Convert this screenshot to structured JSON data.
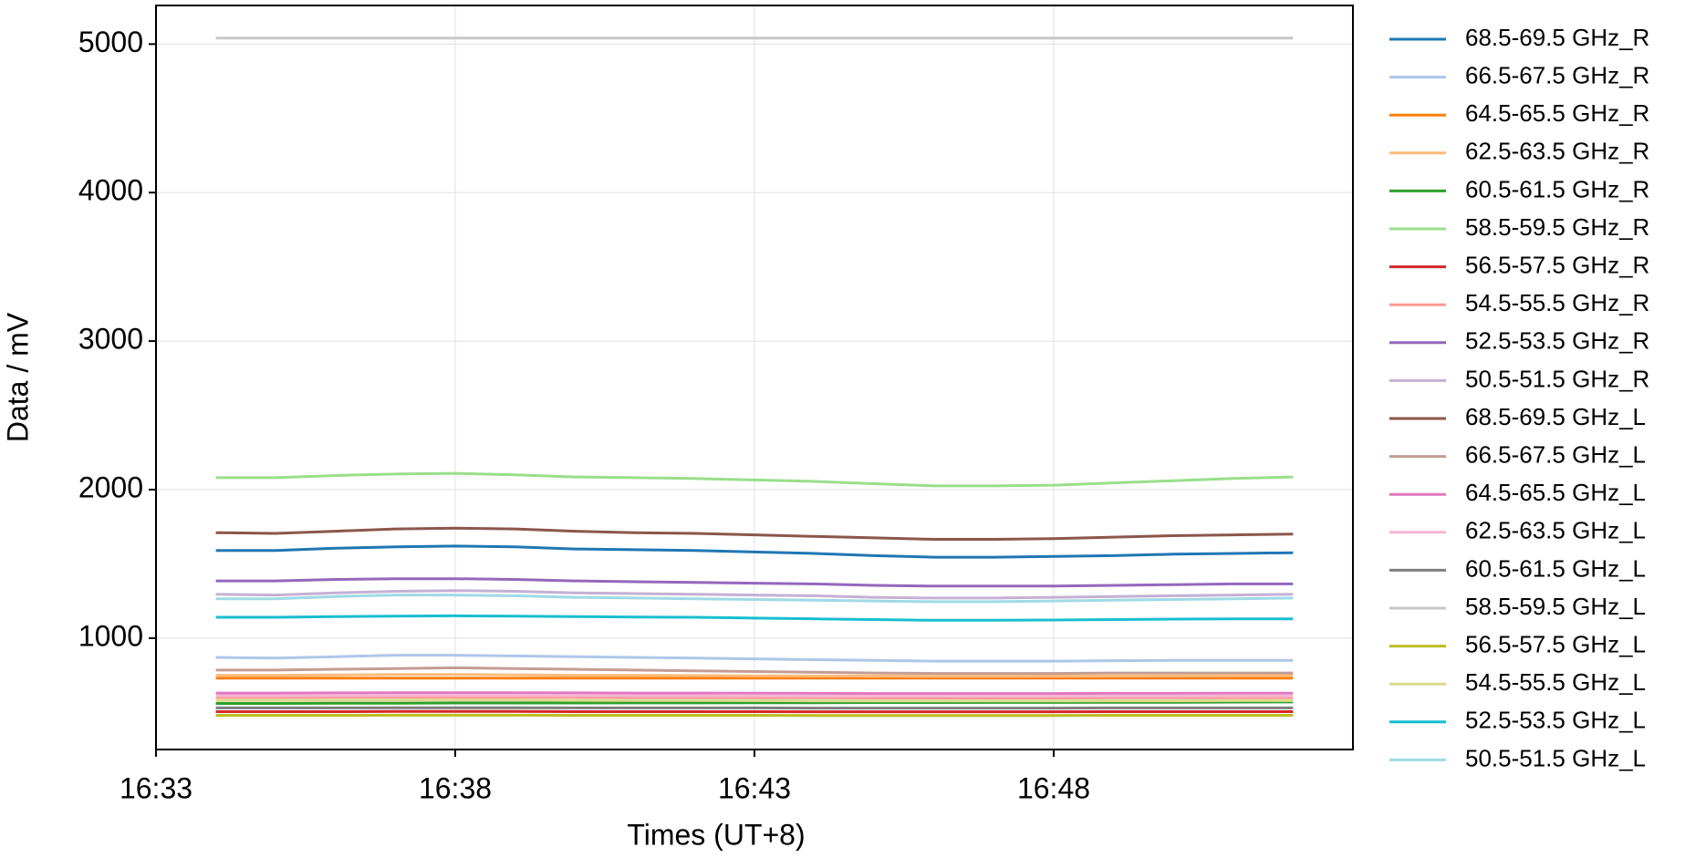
{
  "chart_data": {
    "type": "line",
    "x_label": "Times (UT+8)",
    "y_label": "Data / mV",
    "x": [
      "16:34",
      "16:35",
      "16:36",
      "16:37",
      "16:38",
      "16:39",
      "16:40",
      "16:41",
      "16:42",
      "16:43",
      "16:44",
      "16:45",
      "16:46",
      "16:47",
      "16:48",
      "16:49",
      "16:50",
      "16:51",
      "16:52"
    ],
    "xlim": [
      "16:33",
      "16:53"
    ],
    "xticks": [
      "16:33",
      "16:38",
      "16:43",
      "16:48"
    ],
    "ylim": [
      250,
      5260
    ],
    "yticks": [
      1000,
      2000,
      3000,
      4000,
      5000
    ],
    "grid": true,
    "legend": "outside-right",
    "series": [
      {
        "name": "68.5-69.5 GHz_R",
        "color": "#1f77b4",
        "values": [
          1590,
          1590,
          1605,
          1615,
          1620,
          1615,
          1600,
          1595,
          1590,
          1580,
          1570,
          1555,
          1545,
          1545,
          1550,
          1555,
          1565,
          1570,
          1575
        ]
      },
      {
        "name": "66.5-67.5 GHz_R",
        "color": "#aec7e8",
        "values": [
          870,
          865,
          875,
          885,
          885,
          880,
          875,
          870,
          865,
          860,
          855,
          850,
          845,
          845,
          845,
          848,
          850,
          850,
          850
        ]
      },
      {
        "name": "64.5-65.5 GHz_R",
        "color": "#ff7f0e",
        "values": [
          730,
          730,
          730,
          730,
          730,
          730,
          730,
          730,
          730,
          730,
          730,
          730,
          730,
          730,
          730,
          730,
          730,
          730,
          730
        ]
      },
      {
        "name": "62.5-63.5 GHz_R",
        "color": "#ffbb78",
        "values": [
          750,
          750,
          752,
          755,
          755,
          753,
          750,
          750,
          748,
          746,
          745,
          744,
          743,
          743,
          744,
          745,
          746,
          747,
          748
        ]
      },
      {
        "name": "60.5-61.5 GHz_R",
        "color": "#2ca02c",
        "values": [
          560,
          560,
          561,
          562,
          563,
          563,
          563,
          564,
          564,
          565,
          565,
          566,
          566,
          567,
          567,
          568,
          568,
          569,
          570
        ]
      },
      {
        "name": "58.5-59.5 GHz_R",
        "color": "#98df8a",
        "values": [
          2080,
          2080,
          2095,
          2105,
          2110,
          2100,
          2085,
          2080,
          2075,
          2065,
          2055,
          2040,
          2025,
          2025,
          2030,
          2045,
          2060,
          2075,
          2085
        ]
      },
      {
        "name": "56.5-57.5 GHz_R",
        "color": "#d62728",
        "values": [
          505,
          505,
          505,
          506,
          506,
          506,
          505,
          505,
          505,
          505,
          504,
          504,
          504,
          504,
          504,
          505,
          505,
          505,
          505
        ]
      },
      {
        "name": "54.5-55.5 GHz_R",
        "color": "#ff9896",
        "values": [
          600,
          600,
          601,
          602,
          602,
          602,
          601,
          600,
          600,
          599,
          598,
          597,
          597,
          597,
          597,
          598,
          598,
          599,
          599
        ]
      },
      {
        "name": "52.5-53.5 GHz_R",
        "color": "#9467bd",
        "values": [
          1385,
          1385,
          1395,
          1400,
          1400,
          1395,
          1385,
          1380,
          1375,
          1370,
          1365,
          1355,
          1350,
          1350,
          1350,
          1355,
          1360,
          1365,
          1365
        ]
      },
      {
        "name": "50.5-51.5 GHz_R",
        "color": "#c5b0d5",
        "values": [
          1295,
          1290,
          1305,
          1315,
          1320,
          1315,
          1305,
          1300,
          1295,
          1290,
          1285,
          1275,
          1270,
          1270,
          1275,
          1280,
          1285,
          1290,
          1295
        ]
      },
      {
        "name": "68.5-69.5 GHz_L",
        "color": "#8c564b",
        "values": [
          1710,
          1705,
          1720,
          1735,
          1740,
          1735,
          1720,
          1710,
          1705,
          1695,
          1685,
          1675,
          1665,
          1665,
          1670,
          1680,
          1690,
          1695,
          1700
        ]
      },
      {
        "name": "66.5-67.5 GHz_L",
        "color": "#c49c94",
        "values": [
          785,
          785,
          790,
          795,
          800,
          795,
          790,
          785,
          780,
          775,
          770,
          765,
          762,
          762,
          762,
          765,
          765,
          765,
          765
        ]
      },
      {
        "name": "64.5-65.5 GHz_L",
        "color": "#e377c2",
        "values": [
          630,
          630,
          631,
          632,
          632,
          632,
          631,
          630,
          630,
          629,
          628,
          627,
          627,
          627,
          627,
          628,
          628,
          629,
          629
        ]
      },
      {
        "name": "62.5-63.5 GHz_L",
        "color": "#f7b6d2",
        "values": [
          612,
          612,
          613,
          614,
          614,
          614,
          613,
          612,
          612,
          611,
          610,
          609,
          609,
          609,
          609,
          610,
          610,
          611,
          611
        ]
      },
      {
        "name": "60.5-61.5 GHz_L",
        "color": "#7f7f7f",
        "values": [
          530,
          530,
          530,
          531,
          531,
          531,
          530,
          530,
          530,
          530,
          529,
          529,
          529,
          529,
          529,
          530,
          530,
          530,
          530
        ]
      },
      {
        "name": "58.5-59.5 GHz_L",
        "color": "#c7c7c7",
        "values": [
          5040,
          5040,
          5040,
          5040,
          5040,
          5040,
          5040,
          5040,
          5040,
          5040,
          5040,
          5040,
          5040,
          5040,
          5040,
          5040,
          5040,
          5040,
          5040
        ]
      },
      {
        "name": "56.5-57.5 GHz_L",
        "color": "#bcbd22",
        "values": [
          480,
          480,
          480,
          481,
          481,
          481,
          480,
          480,
          480,
          480,
          479,
          479,
          479,
          479,
          479,
          480,
          480,
          480,
          480
        ]
      },
      {
        "name": "54.5-55.5 GHz_L",
        "color": "#dbdb8d",
        "values": [
          580,
          580,
          581,
          582,
          582,
          582,
          581,
          580,
          580,
          579,
          578,
          577,
          577,
          577,
          577,
          578,
          578,
          579,
          579
        ]
      },
      {
        "name": "52.5-53.5 GHz_L",
        "color": "#17becf",
        "values": [
          1140,
          1140,
          1145,
          1148,
          1150,
          1148,
          1145,
          1142,
          1140,
          1135,
          1130,
          1125,
          1120,
          1120,
          1122,
          1125,
          1128,
          1130,
          1130
        ]
      },
      {
        "name": "50.5-51.5 GHz_L",
        "color": "#9edae5",
        "values": [
          1265,
          1265,
          1280,
          1290,
          1290,
          1285,
          1275,
          1270,
          1265,
          1260,
          1255,
          1250,
          1245,
          1245,
          1250,
          1255,
          1260,
          1265,
          1270
        ]
      }
    ]
  }
}
